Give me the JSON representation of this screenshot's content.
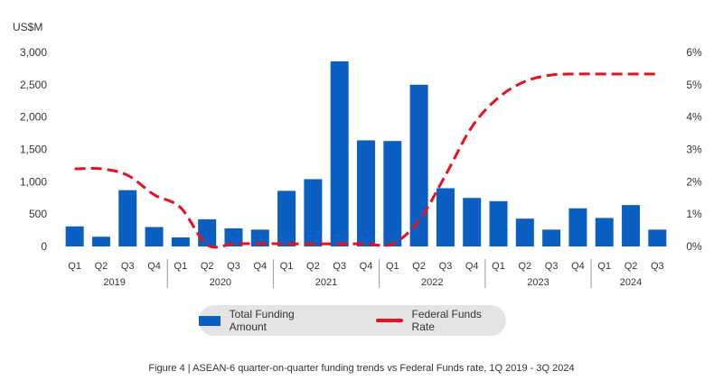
{
  "caption": "Figure 4 | ASEAN-6 quarter-on-quarter funding trends vs Federal Funds rate, 1Q 2019 - 3Q 2024",
  "chart_data": {
    "type": "bar",
    "title": "",
    "y_unit_label": "US$M",
    "ylim": [
      0,
      3000
    ],
    "y_ticks": [
      "0",
      "500",
      "1,000",
      "1,500",
      "2,000",
      "2,500",
      "3,000"
    ],
    "y2lim": [
      0,
      6
    ],
    "y2_ticks": [
      "0%",
      "1%",
      "2%",
      "3%",
      "4%",
      "5%",
      "6%"
    ],
    "quarter_labels": [
      "Q1",
      "Q2",
      "Q3",
      "Q4",
      "Q1",
      "Q2",
      "Q3",
      "Q4",
      "Q1",
      "Q2",
      "Q3",
      "Q4",
      "Q1",
      "Q2",
      "Q3",
      "Q4",
      "Q1",
      "Q2",
      "Q3",
      "Q4",
      "Q1",
      "Q2",
      "Q3"
    ],
    "year_groups": [
      {
        "label": "2019",
        "count": 4
      },
      {
        "label": "2020",
        "count": 4
      },
      {
        "label": "2021",
        "count": 4
      },
      {
        "label": "2022",
        "count": 4
      },
      {
        "label": "2023",
        "count": 4
      },
      {
        "label": "2024",
        "count": 3
      }
    ],
    "series": [
      {
        "name": "Total Funding Amount",
        "type": "bar",
        "axis": "left",
        "color": "#0b5ec2",
        "values": [
          310,
          150,
          870,
          300,
          140,
          420,
          280,
          260,
          860,
          1040,
          2860,
          1640,
          1630,
          2500,
          900,
          750,
          700,
          430,
          260,
          590,
          440,
          640,
          260
        ]
      },
      {
        "name": "Federal Funds Rate",
        "type": "line",
        "style": "dashed",
        "axis": "right",
        "color": "#e8101e",
        "values": [
          2.4,
          2.4,
          2.2,
          1.6,
          1.2,
          0.05,
          0.08,
          0.09,
          0.08,
          0.08,
          0.08,
          0.08,
          0.08,
          0.8,
          2.2,
          3.7,
          4.6,
          5.1,
          5.3,
          5.33,
          5.33,
          5.33,
          5.33
        ]
      }
    ],
    "grid": false,
    "legend_position": "bottom-center"
  }
}
